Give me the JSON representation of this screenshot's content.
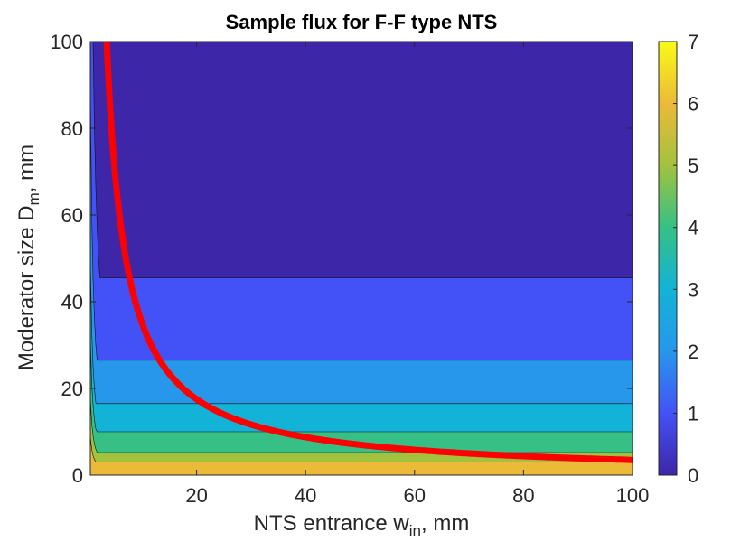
{
  "chart_data": {
    "type": "contour",
    "title": "Sample flux for F-F type NTS",
    "xlabel": {
      "prefix": "NTS entrance w",
      "sub": "in",
      "suffix": ", mm"
    },
    "ylabel": {
      "prefix": "Moderator size D",
      "sub": "m",
      "suffix": ", mm"
    },
    "xlim": [
      0.5,
      100
    ],
    "ylim": [
      0,
      100
    ],
    "xticks": [
      "20",
      "40",
      "60",
      "80",
      "100"
    ],
    "yticks": [
      "0",
      "20",
      "40",
      "60",
      "80",
      "100"
    ],
    "colorbar": {
      "ticks": [
        "0",
        "1",
        "2",
        "3",
        "4",
        "5",
        "6",
        "7"
      ],
      "range": [
        0,
        7
      ],
      "colormap": "parula"
    },
    "contour_levels": [
      {
        "flux": 0.5,
        "product": 220,
        "plateau_y": 100,
        "color": "#3e26a8"
      },
      {
        "flux": 1.5,
        "product": 100,
        "plateau_y": 45.5,
        "color": "#4352f6"
      },
      {
        "flux": 2.5,
        "product": 45,
        "plateau_y": 26.5,
        "color": "#2797ec"
      },
      {
        "flux": 3.5,
        "product": 25,
        "plateau_y": 16.5,
        "color": "#12b3d6"
      },
      {
        "flux": 4.5,
        "product": 16,
        "plateau_y": 10,
        "color": "#36c086"
      },
      {
        "flux": 5.5,
        "product": 9,
        "plateau_y": 5.2,
        "color": "#a2c23e"
      },
      {
        "flux": 6.5,
        "product": 4.5,
        "plateau_y": 3,
        "color": "#ebba39"
      }
    ],
    "optimal_curve": {
      "equation": "D_m * w_in = 350",
      "color": "#ff0000",
      "x_start": 3.5,
      "x_end": 100
    }
  }
}
